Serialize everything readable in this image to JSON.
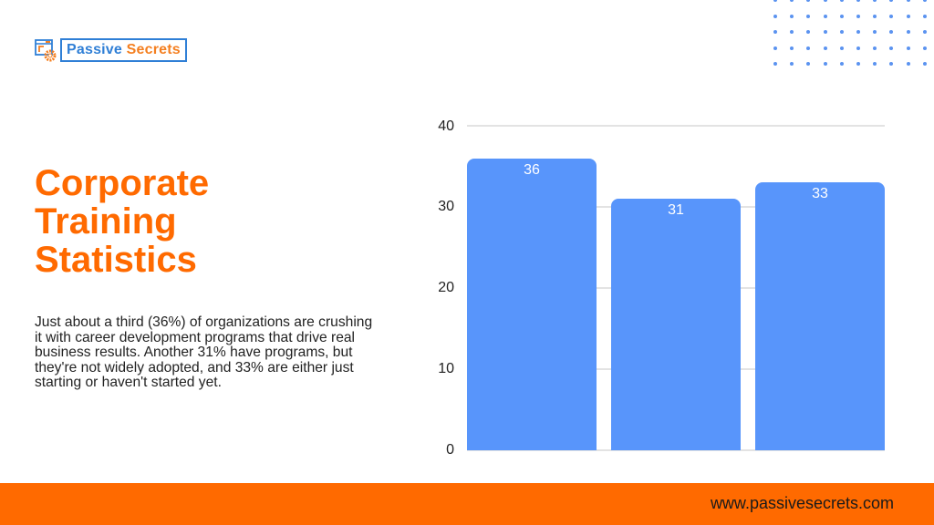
{
  "brand": {
    "logo_icon": "browser-gear-icon",
    "name_part1": "Passive",
    "name_part2": "Secrets",
    "accent_blue": "#2f7fd6",
    "accent_orange": "#f47f20"
  },
  "header": {
    "title_lines": [
      "Corporate",
      "Training",
      "Statistics"
    ],
    "title_color": "#ff6a00"
  },
  "description": "Just about a third (36%) of organizations are crushing it with career development programs that drive real business results. Another 31% have programs, but they're not widely adopted, and 33% are either just starting or haven't started yet.",
  "footer": {
    "url": "www.passivesecrets.com",
    "color": "#ff6a00"
  },
  "chart_data": {
    "type": "bar",
    "title": "",
    "categories": [
      "",
      "",
      ""
    ],
    "values": [
      36,
      31,
      33
    ],
    "data_labels": [
      "36",
      "31",
      "33"
    ],
    "xlabel": "",
    "ylabel": "",
    "ylim": [
      0,
      40
    ],
    "yticks": [
      "40",
      "30",
      "20",
      "10",
      "0"
    ],
    "grid": true,
    "legend": "none",
    "bar_color": "#5895fb"
  }
}
